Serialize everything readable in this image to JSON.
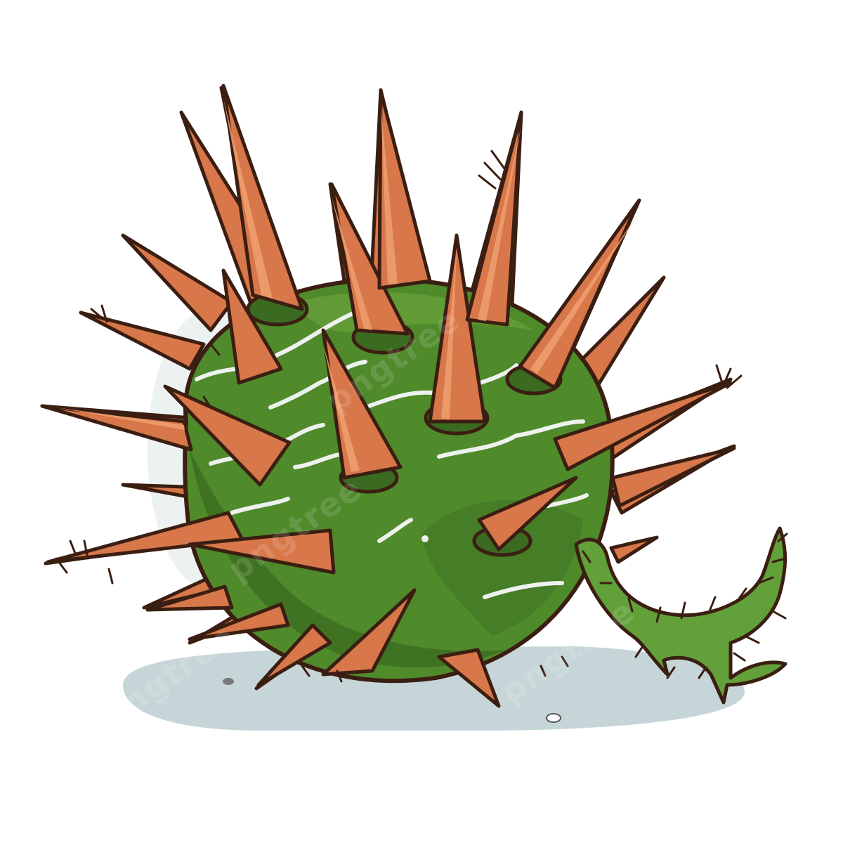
{
  "scene": {
    "subject": "spiky-green-seed-pod",
    "colors": {
      "background": "#ffffff",
      "shadow": "#c6d6d8",
      "body": "#4f8a2b",
      "body_dark": "#3a6b20",
      "body_light": "#6aa33c",
      "spike": "#d8774a",
      "spike_light": "#f0a070",
      "outline": "#3b1e12",
      "highlight": "#eef2ee",
      "vine": "#62a03a"
    },
    "watermarks": [
      "pngtree",
      "pngtree",
      "pngtree",
      "pngtree"
    ]
  }
}
